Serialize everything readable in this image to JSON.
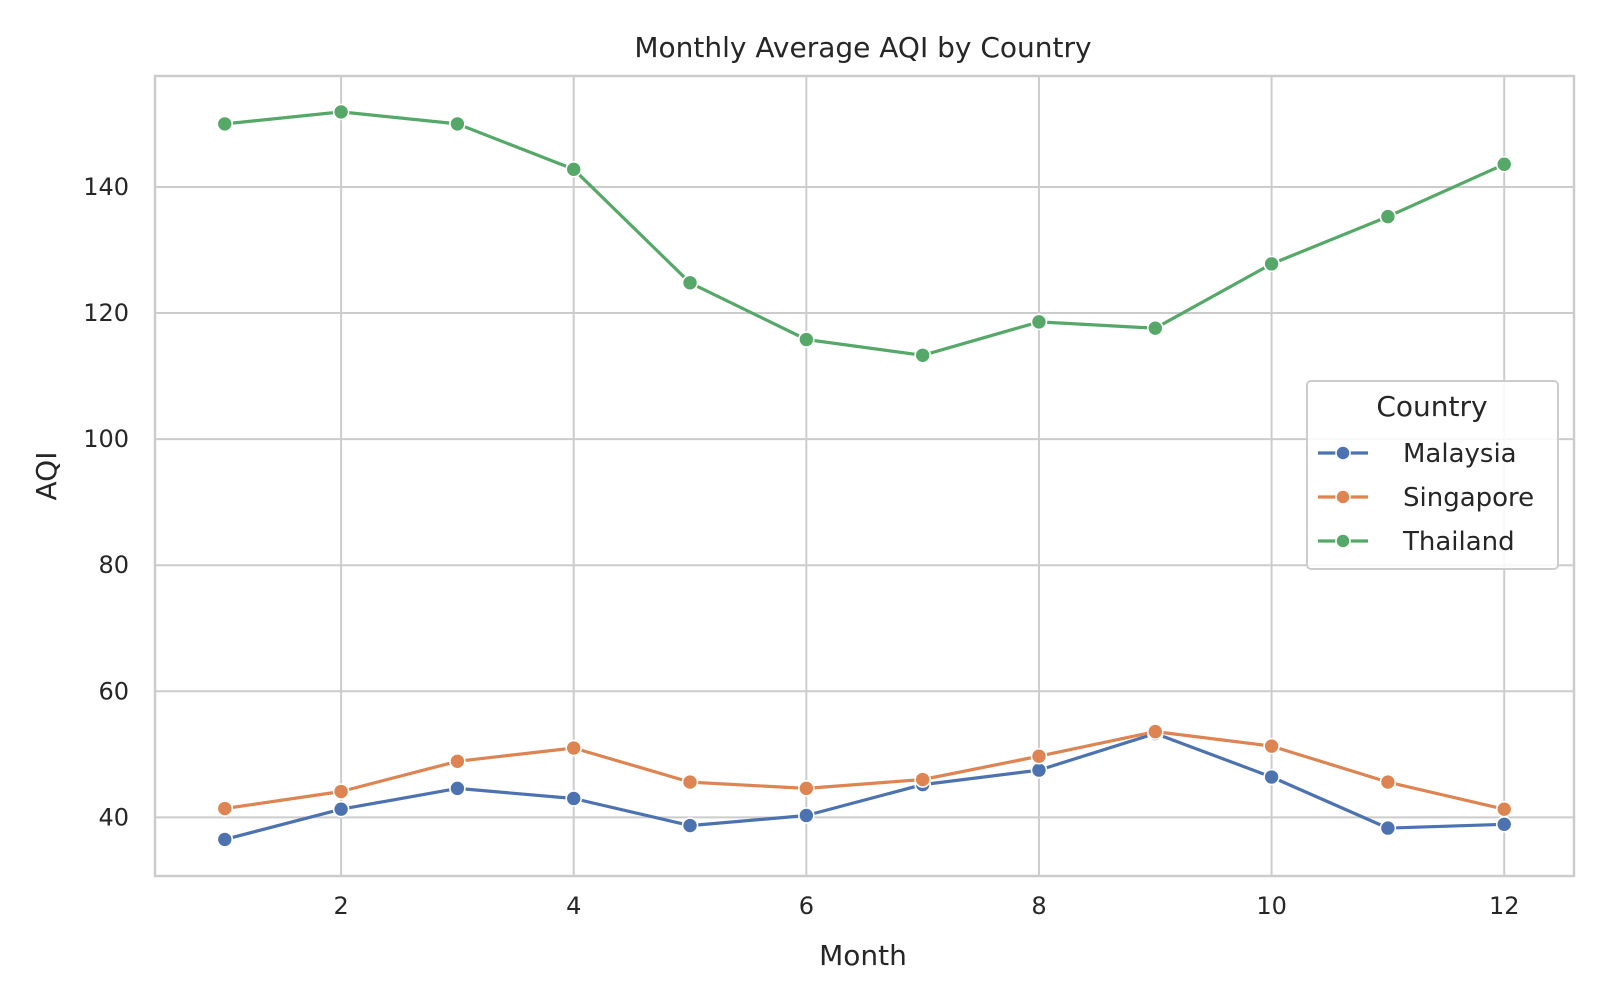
{
  "chart_data": {
    "type": "line",
    "title": "Monthly Average AQI by Country",
    "xlabel": "Month",
    "ylabel": "AQI",
    "x": [
      1,
      2,
      3,
      4,
      5,
      6,
      7,
      8,
      9,
      10,
      11,
      12
    ],
    "xlim": [
      0.4,
      12.6
    ],
    "ylim": [
      30.7,
      157.6
    ],
    "xticks": [
      2,
      4,
      6,
      8,
      10,
      12
    ],
    "yticks": [
      40,
      60,
      80,
      100,
      120,
      140
    ],
    "grid": true,
    "legend": {
      "title": "Country",
      "placement": "center-right"
    },
    "series": [
      {
        "name": "Malaysia",
        "color": "#4c72b0",
        "values": [
          36.5,
          41.3,
          44.6,
          43.0,
          38.7,
          40.3,
          45.2,
          47.5,
          53.3,
          46.4,
          38.3,
          38.9
        ]
      },
      {
        "name": "Singapore",
        "color": "#dd8452",
        "values": [
          41.4,
          44.1,
          48.9,
          51.0,
          45.6,
          44.6,
          46.0,
          49.7,
          53.6,
          51.3,
          45.6,
          41.3
        ]
      },
      {
        "name": "Thailand",
        "color": "#55a868",
        "values": [
          150.0,
          151.9,
          150.0,
          142.8,
          124.8,
          115.8,
          113.3,
          118.6,
          117.6,
          127.8,
          135.3,
          143.6
        ]
      }
    ]
  }
}
